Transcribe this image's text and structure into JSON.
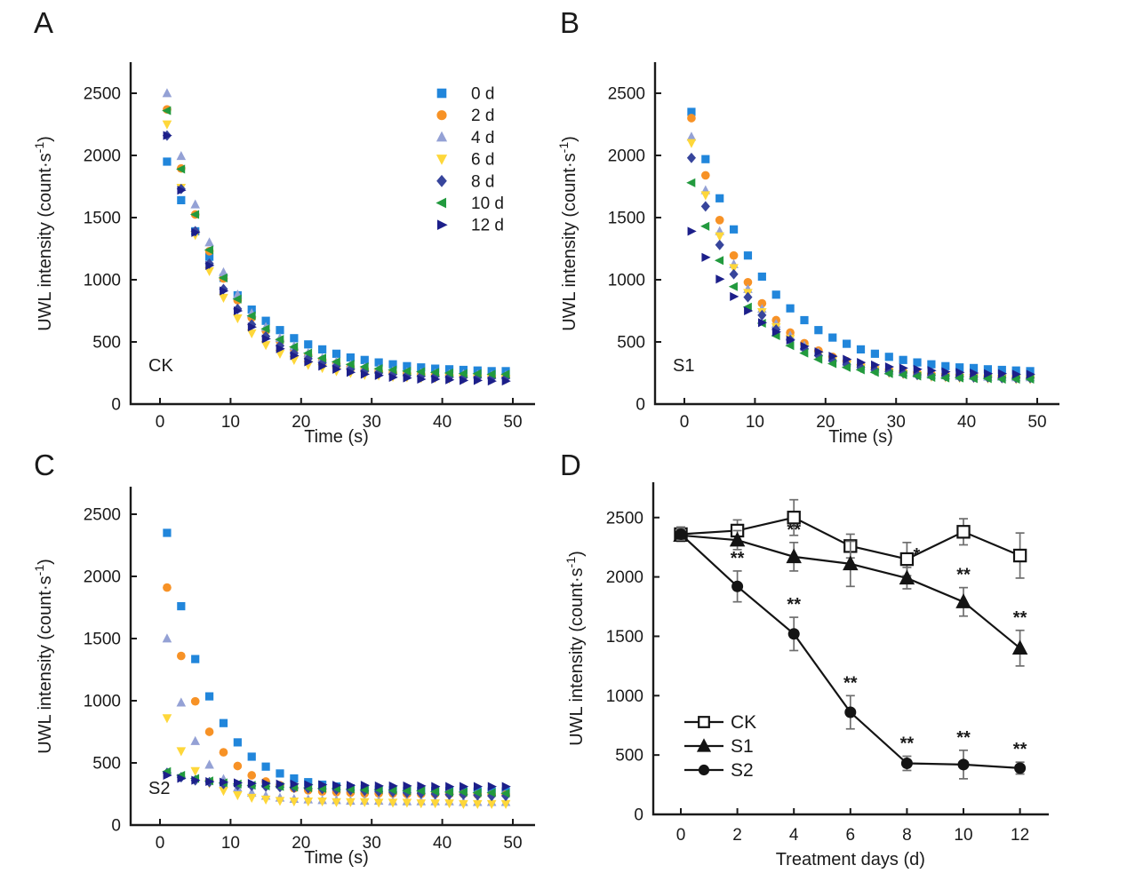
{
  "figure_colors": {
    "axis": "#1a1a1a",
    "error_bar": "#6e6e6e",
    "background": "#ffffff"
  },
  "chart_data": [
    {
      "letter": "A",
      "type": "scatter",
      "inner_label": "CK",
      "xlabel": "Time (s)",
      "ylabel": "UWL intensity (count·s⁻¹)",
      "xlim": [
        -4,
        53
      ],
      "ylim": [
        0,
        2750
      ],
      "xticks": [
        0,
        10,
        20,
        30,
        40,
        50
      ],
      "yticks": [
        0,
        500,
        1000,
        1500,
        2000,
        2500
      ],
      "legend": {
        "show": true,
        "position": "top-right"
      },
      "x": [
        1,
        3,
        5,
        7,
        9,
        11,
        13,
        15,
        17,
        19,
        21,
        23,
        25,
        27,
        29,
        31,
        33,
        35,
        37,
        39,
        41,
        43,
        45,
        47,
        49
      ],
      "series": [
        {
          "name": "0 d",
          "marker": "square",
          "color": "#2186db",
          "values": [
            1950,
            1640,
            1390,
            1185,
            1015,
            875,
            760,
            670,
            595,
            530,
            480,
            440,
            405,
            375,
            355,
            335,
            320,
            305,
            295,
            285,
            280,
            275,
            270,
            265,
            265
          ]
        },
        {
          "name": "2 d",
          "marker": "circle",
          "color": "#f79226",
          "values": [
            2370,
            1895,
            1525,
            1230,
            1010,
            835,
            695,
            590,
            505,
            440,
            390,
            355,
            325,
            300,
            280,
            265,
            255,
            245,
            240,
            235,
            230,
            225,
            225,
            220,
            220
          ]
        },
        {
          "name": "4 d",
          "marker": "triangle-up",
          "color": "#94a1d5",
          "values": [
            2500,
            1995,
            1605,
            1300,
            1060,
            880,
            730,
            620,
            530,
            465,
            410,
            370,
            340,
            315,
            295,
            280,
            265,
            255,
            250,
            245,
            240,
            240,
            235,
            230,
            230
          ]
        },
        {
          "name": "6 d",
          "marker": "triangle-down",
          "color": "#fed73a",
          "values": [
            2250,
            1740,
            1360,
            1070,
            855,
            690,
            570,
            475,
            405,
            355,
            315,
            290,
            265,
            250,
            235,
            230,
            220,
            215,
            210,
            210,
            205,
            205,
            205,
            205,
            200
          ]
        },
        {
          "name": "8 d",
          "marker": "diamond",
          "color": "#37459c",
          "values": [
            2160,
            1730,
            1390,
            1130,
            925,
            765,
            640,
            545,
            470,
            410,
            365,
            330,
            305,
            280,
            265,
            250,
            240,
            230,
            225,
            225,
            220,
            215,
            215,
            210,
            210
          ]
        },
        {
          "name": "10 d",
          "marker": "triangle-left",
          "color": "#229a3e",
          "values": [
            2360,
            1890,
            1525,
            1240,
            1015,
            845,
            710,
            605,
            520,
            460,
            410,
            370,
            340,
            320,
            300,
            285,
            275,
            265,
            260,
            255,
            250,
            245,
            245,
            240,
            240
          ]
        },
        {
          "name": "12 d",
          "marker": "triangle-right",
          "color": "#1c1f8a",
          "values": [
            2160,
            1720,
            1380,
            1115,
            910,
            750,
            620,
            525,
            445,
            390,
            340,
            305,
            280,
            255,
            240,
            230,
            215,
            210,
            200,
            200,
            195,
            190,
            190,
            185,
            185
          ]
        }
      ]
    },
    {
      "letter": "B",
      "type": "scatter",
      "inner_label": "S1",
      "xlabel": "Time (s)",
      "ylabel": "UWL intensity (count·s⁻¹)",
      "xlim": [
        -4,
        53
      ],
      "ylim": [
        0,
        2750
      ],
      "xticks": [
        0,
        10,
        20,
        30,
        40,
        50
      ],
      "yticks": [
        0,
        500,
        1000,
        1500,
        2000,
        2500
      ],
      "legend": {
        "show": false
      },
      "x": [
        1,
        3,
        5,
        7,
        9,
        11,
        13,
        15,
        17,
        19,
        21,
        23,
        25,
        27,
        29,
        31,
        33,
        35,
        37,
        39,
        41,
        43,
        45,
        47,
        49
      ],
      "series": [
        {
          "name": "0 d",
          "marker": "square",
          "color": "#2186db",
          "values": [
            2350,
            1970,
            1655,
            1405,
            1195,
            1025,
            880,
            770,
            675,
            595,
            535,
            485,
            440,
            405,
            380,
            355,
            335,
            320,
            305,
            295,
            290,
            280,
            275,
            270,
            265
          ]
        },
        {
          "name": "2 d",
          "marker": "circle",
          "color": "#f79226",
          "values": [
            2300,
            1840,
            1480,
            1195,
            980,
            810,
            675,
            575,
            490,
            430,
            380,
            345,
            315,
            290,
            275,
            260,
            250,
            240,
            235,
            230,
            225,
            220,
            220,
            215,
            215
          ]
        },
        {
          "name": "4 d",
          "marker": "triangle-up",
          "color": "#94a1d5",
          "values": [
            2150,
            1720,
            1390,
            1125,
            925,
            765,
            645,
            550,
            470,
            415,
            370,
            335,
            305,
            285,
            270,
            255,
            245,
            235,
            230,
            225,
            225,
            220,
            220,
            215,
            215
          ]
        },
        {
          "name": "6 d",
          "marker": "triangle-down",
          "color": "#fed73a",
          "values": [
            2100,
            1680,
            1350,
            1095,
            895,
            740,
            620,
            525,
            450,
            395,
            350,
            315,
            290,
            270,
            250,
            240,
            230,
            220,
            215,
            210,
            210,
            205,
            205,
            200,
            200
          ]
        },
        {
          "name": "8 d",
          "marker": "diamond",
          "color": "#37459c",
          "values": [
            1980,
            1590,
            1280,
            1045,
            860,
            715,
            600,
            515,
            445,
            390,
            350,
            320,
            295,
            275,
            260,
            250,
            235,
            230,
            225,
            220,
            215,
            215,
            210,
            210,
            210
          ]
        },
        {
          "name": "10 d",
          "marker": "triangle-left",
          "color": "#229a3e",
          "values": [
            1780,
            1430,
            1155,
            945,
            780,
            650,
            550,
            470,
            410,
            360,
            325,
            295,
            275,
            255,
            245,
            235,
            225,
            215,
            210,
            210,
            205,
            205,
            200,
            200,
            200
          ]
        },
        {
          "name": "12 d",
          "marker": "triangle-right",
          "color": "#1c1f8a",
          "values": [
            1390,
            1180,
            1005,
            865,
            750,
            655,
            580,
            515,
            465,
            420,
            385,
            360,
            335,
            315,
            300,
            290,
            280,
            270,
            260,
            255,
            250,
            245,
            245,
            240,
            240
          ]
        }
      ]
    },
    {
      "letter": "C",
      "type": "scatter",
      "inner_label": "S2",
      "xlabel": "Time (s)",
      "ylabel": "UWL intensity (count·s⁻¹)",
      "xlim": [
        -4,
        53
      ],
      "ylim": [
        0,
        2750
      ],
      "xticks": [
        0,
        10,
        20,
        30,
        40,
        50
      ],
      "yticks": [
        0,
        500,
        1000,
        1500,
        2000,
        2500
      ],
      "legend": {
        "show": false
      },
      "x": [
        1,
        3,
        5,
        7,
        9,
        11,
        13,
        15,
        17,
        19,
        21,
        23,
        25,
        27,
        29,
        31,
        33,
        35,
        37,
        39,
        41,
        43,
        45,
        47,
        49
      ],
      "series": [
        {
          "name": "0 d",
          "marker": "square",
          "color": "#2186db",
          "values": [
            2350,
            1760,
            1335,
            1035,
            820,
            665,
            550,
            470,
            415,
            375,
            345,
            325,
            310,
            295,
            290,
            285,
            280,
            275,
            275,
            275,
            275,
            270,
            270,
            270,
            270
          ]
        },
        {
          "name": "2 d",
          "marker": "circle",
          "color": "#f79226",
          "values": [
            1910,
            1360,
            995,
            750,
            585,
            475,
            400,
            350,
            320,
            295,
            280,
            270,
            265,
            260,
            255,
            255,
            255,
            250,
            250,
            250,
            250,
            250,
            245,
            245,
            245
          ]
        },
        {
          "name": "4 d",
          "marker": "triangle-up",
          "color": "#94a1d5",
          "values": [
            1500,
            985,
            675,
            485,
            370,
            300,
            260,
            235,
            220,
            210,
            205,
            200,
            200,
            195,
            195,
            195,
            190,
            190,
            190,
            190,
            190,
            185,
            185,
            185,
            185
          ]
        },
        {
          "name": "6 d",
          "marker": "triangle-down",
          "color": "#fed73a",
          "values": [
            860,
            595,
            435,
            335,
            275,
            240,
            220,
            205,
            195,
            190,
            190,
            190,
            185,
            185,
            185,
            180,
            180,
            180,
            175,
            175,
            175,
            170,
            170,
            170,
            170
          ]
        },
        {
          "name": "8 d",
          "marker": "diamond",
          "color": "#37459c",
          "values": [
            420,
            385,
            360,
            345,
            330,
            320,
            315,
            310,
            305,
            300,
            295,
            290,
            285,
            280,
            275,
            270,
            265,
            260,
            255,
            250,
            245,
            245,
            240,
            235,
            235
          ]
        },
        {
          "name": "10 d",
          "marker": "triangle-left",
          "color": "#229a3e",
          "values": [
            430,
            400,
            375,
            355,
            340,
            330,
            320,
            315,
            310,
            305,
            300,
            295,
            295,
            290,
            285,
            285,
            280,
            275,
            275,
            270,
            265,
            265,
            260,
            260,
            255
          ]
        },
        {
          "name": "12 d",
          "marker": "triangle-right",
          "color": "#1c1f8a",
          "values": [
            400,
            375,
            360,
            350,
            345,
            340,
            335,
            335,
            330,
            330,
            325,
            325,
            320,
            320,
            320,
            315,
            315,
            315,
            315,
            310,
            310,
            310,
            310,
            310,
            310
          ]
        }
      ]
    },
    {
      "letter": "D",
      "type": "line",
      "inner_label": "",
      "xlabel": "Treatment days (d)",
      "ylabel": "UWL intensity (count·s⁻¹)",
      "xlim": [
        -1,
        13
      ],
      "ylim": [
        0,
        2750
      ],
      "xticks": [
        0,
        2,
        4,
        6,
        8,
        10,
        12
      ],
      "yticks": [
        0,
        500,
        1000,
        1500,
        2000,
        2500
      ],
      "legend": {
        "show": true,
        "position": "inside-left"
      },
      "x": [
        0,
        2,
        4,
        6,
        8,
        10,
        12
      ],
      "series": [
        {
          "name": "CK",
          "marker": "open-square",
          "color": "#141414",
          "values": [
            2360,
            2390,
            2500,
            2260,
            2150,
            2380,
            2180
          ],
          "errors": [
            60,
            90,
            150,
            100,
            140,
            110,
            190
          ],
          "sig": [
            "",
            "",
            "",
            "",
            "",
            "",
            ""
          ]
        },
        {
          "name": "S1",
          "marker": "triangle-up-filled",
          "color": "#141414",
          "values": [
            2350,
            2310,
            2170,
            2110,
            1990,
            1790,
            1400
          ],
          "errors": [
            50,
            80,
            120,
            190,
            90,
            120,
            150
          ],
          "sig": [
            "",
            "",
            "**",
            "",
            "*",
            "**",
            "**"
          ]
        },
        {
          "name": "S2",
          "marker": "circle-filled",
          "color": "#141414",
          "values": [
            2360,
            1920,
            1520,
            860,
            430,
            420,
            390
          ],
          "errors": [
            50,
            130,
            140,
            140,
            60,
            120,
            50
          ],
          "sig": [
            "",
            "**",
            "**",
            "**",
            "**",
            "**",
            "**"
          ]
        }
      ]
    }
  ]
}
